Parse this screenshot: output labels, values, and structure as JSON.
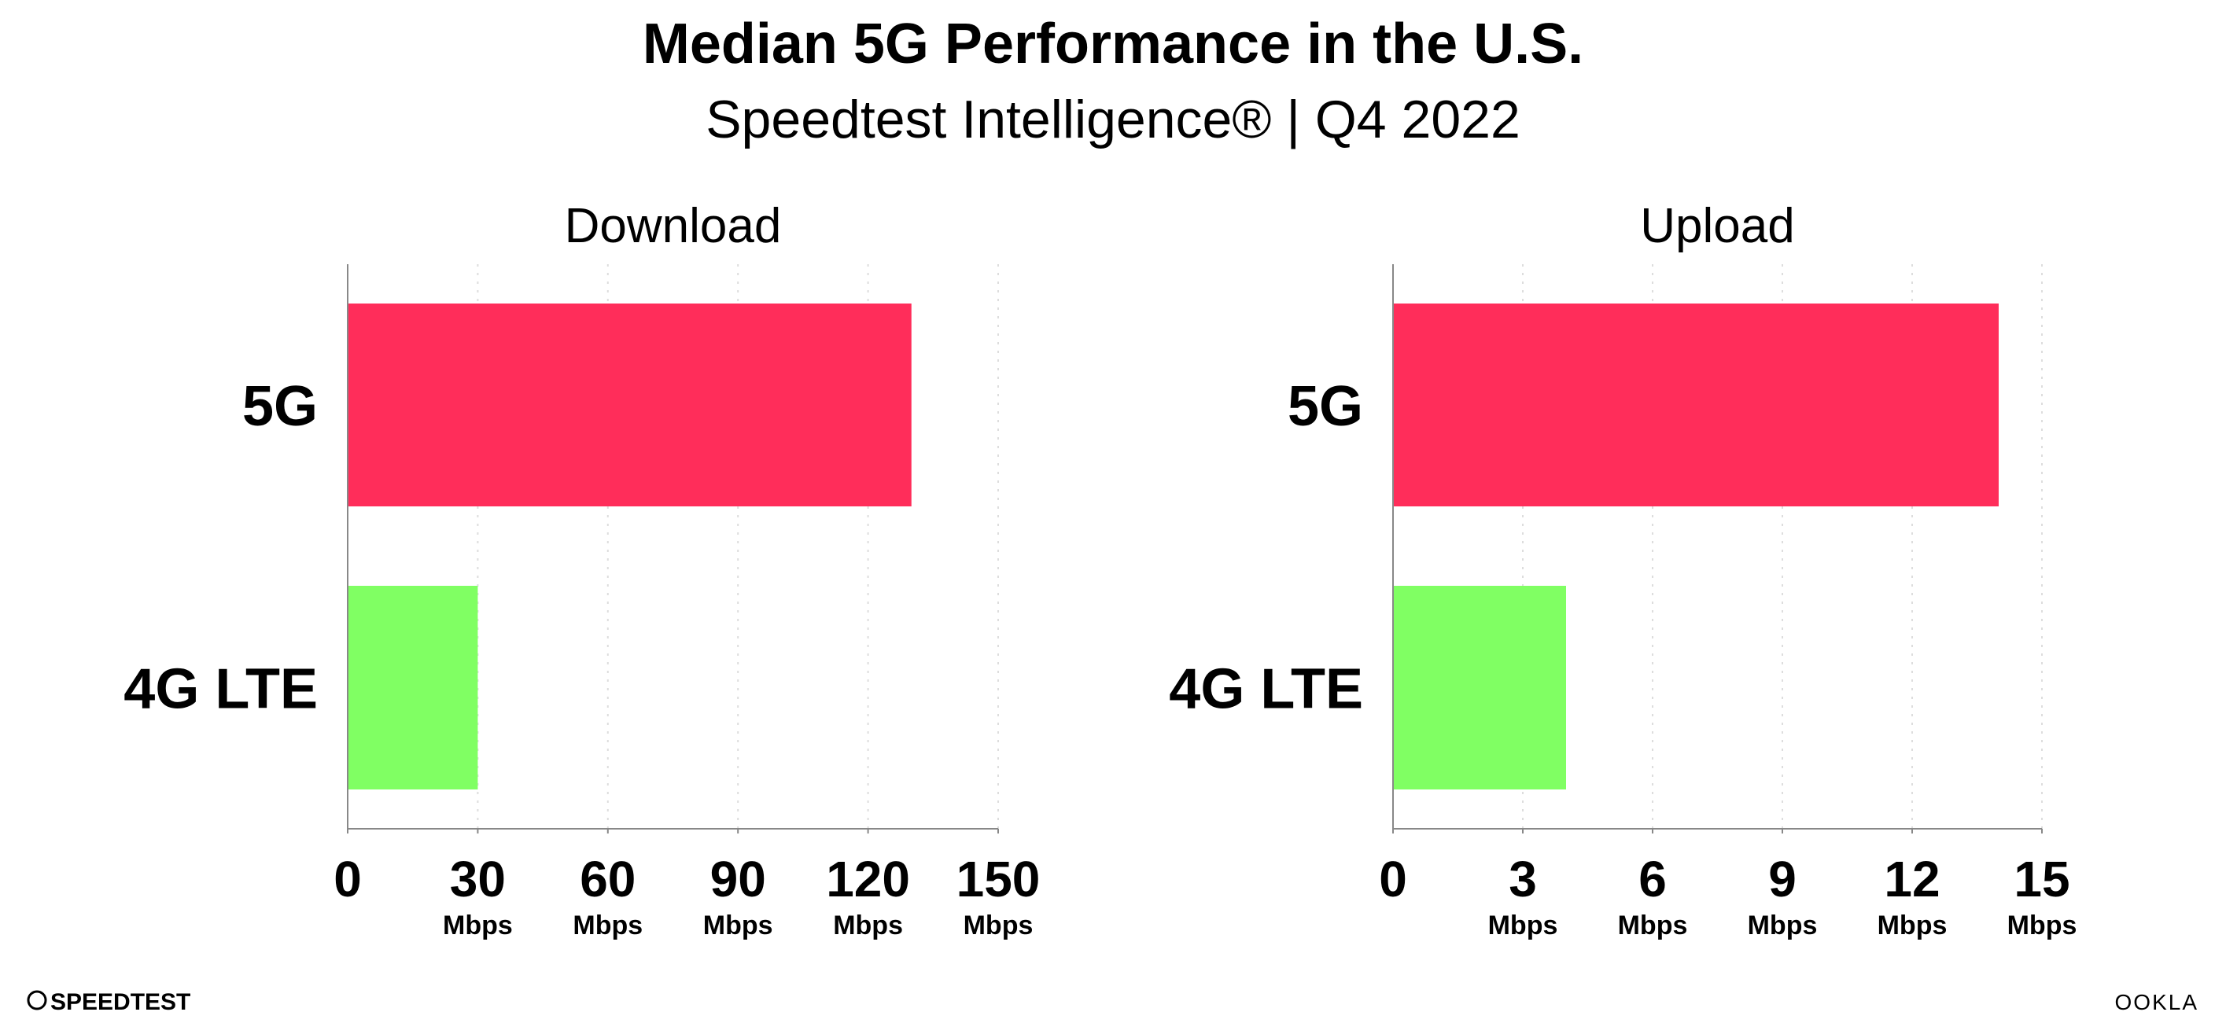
{
  "title": "Median 5G Performance in the U.S.",
  "subtitle": "Speedtest Intelligence® | Q4 2022",
  "chart_data": [
    {
      "type": "hbar",
      "title": "Download",
      "categories": [
        "5G",
        "4G LTE"
      ],
      "values": [
        130,
        30
      ],
      "colors": [
        "#ff2d5a",
        "#80ff63"
      ],
      "xlim": [
        0,
        150
      ],
      "xticks": [
        0,
        {
          "value": 30,
          "label": "30 Mbps"
        },
        {
          "value": 60,
          "label": "60 Mbps"
        },
        {
          "value": 90,
          "label": "90 Mbps"
        },
        {
          "value": 120,
          "label": "120 Mbps"
        },
        {
          "value": 150,
          "label": "150 Mbps"
        }
      ],
      "grid": true
    },
    {
      "type": "hbar",
      "title": "Upload",
      "categories": [
        "5G",
        "4G LTE"
      ],
      "values": [
        14,
        4
      ],
      "colors": [
        "#ff2d5a",
        "#80ff63"
      ],
      "xlim": [
        0,
        15
      ],
      "xticks": [
        0,
        {
          "value": 3,
          "label": "3 Mbps"
        },
        {
          "value": 6,
          "label": "6 Mbps"
        },
        {
          "value": 9,
          "label": "9 Mbps"
        },
        {
          "value": 12,
          "label": "12 Mbps"
        },
        {
          "value": 15,
          "label": "15 Mbps"
        }
      ],
      "grid": true
    }
  ],
  "footer": {
    "left": "SPEEDTEST",
    "right": "OOKLA"
  }
}
